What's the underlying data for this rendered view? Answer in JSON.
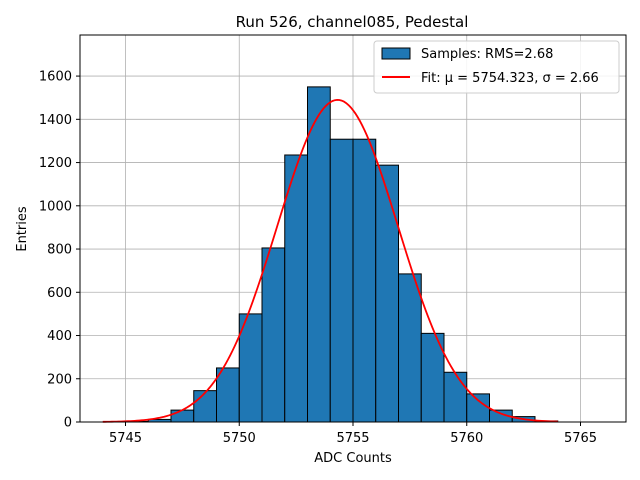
{
  "chart_data": {
    "type": "histogram",
    "title": "Run 526, channel085, Pedestal",
    "xlabel": "ADC Counts",
    "ylabel": "Entries",
    "xlim": [
      5743,
      5767
    ],
    "ylim": [
      0,
      1790
    ],
    "xticks": [
      5745,
      5750,
      5755,
      5760,
      5765
    ],
    "yticks": [
      0,
      200,
      400,
      600,
      800,
      1000,
      1200,
      1400,
      1600
    ],
    "grid": true,
    "bins": [
      {
        "left": 5745,
        "right": 5746,
        "count": 3
      },
      {
        "left": 5746,
        "right": 5747,
        "count": 12
      },
      {
        "left": 5747,
        "right": 5748,
        "count": 55
      },
      {
        "left": 5748,
        "right": 5749,
        "count": 145
      },
      {
        "left": 5749,
        "right": 5750,
        "count": 250
      },
      {
        "left": 5750,
        "right": 5751,
        "count": 500
      },
      {
        "left": 5751,
        "right": 5752,
        "count": 805
      },
      {
        "left": 5752,
        "right": 5753,
        "count": 1235
      },
      {
        "left": 5753,
        "right": 5754,
        "count": 1550
      },
      {
        "left": 5754,
        "right": 5755,
        "count": 1308
      },
      {
        "left": 5755,
        "right": 5756,
        "count": 1308
      },
      {
        "left": 5756,
        "right": 5757,
        "count": 1188
      },
      {
        "left": 5757,
        "right": 5758,
        "count": 685
      },
      {
        "left": 5758,
        "right": 5759,
        "count": 410
      },
      {
        "left": 5759,
        "right": 5760,
        "count": 230
      },
      {
        "left": 5760,
        "right": 5761,
        "count": 130
      },
      {
        "left": 5761,
        "right": 5762,
        "count": 55
      },
      {
        "left": 5762,
        "right": 5763,
        "count": 25
      },
      {
        "left": 5763,
        "right": 5764,
        "count": 5
      }
    ],
    "fit": {
      "mu": 5754.323,
      "sigma": 2.66,
      "amplitude": 1490,
      "x_range": [
        5744,
        5764
      ]
    },
    "legend": {
      "placement": "top-right",
      "entries": [
        {
          "label": "Samples: RMS=2.68",
          "kind": "patch"
        },
        {
          "label": "Fit: μ = 5754.323, σ = 2.66",
          "kind": "line"
        }
      ]
    },
    "colors": {
      "bar_fill": "#1f77b4",
      "bar_edge": "#000000",
      "fit_line": "#ff0000",
      "grid": "#b0b0b0"
    }
  }
}
